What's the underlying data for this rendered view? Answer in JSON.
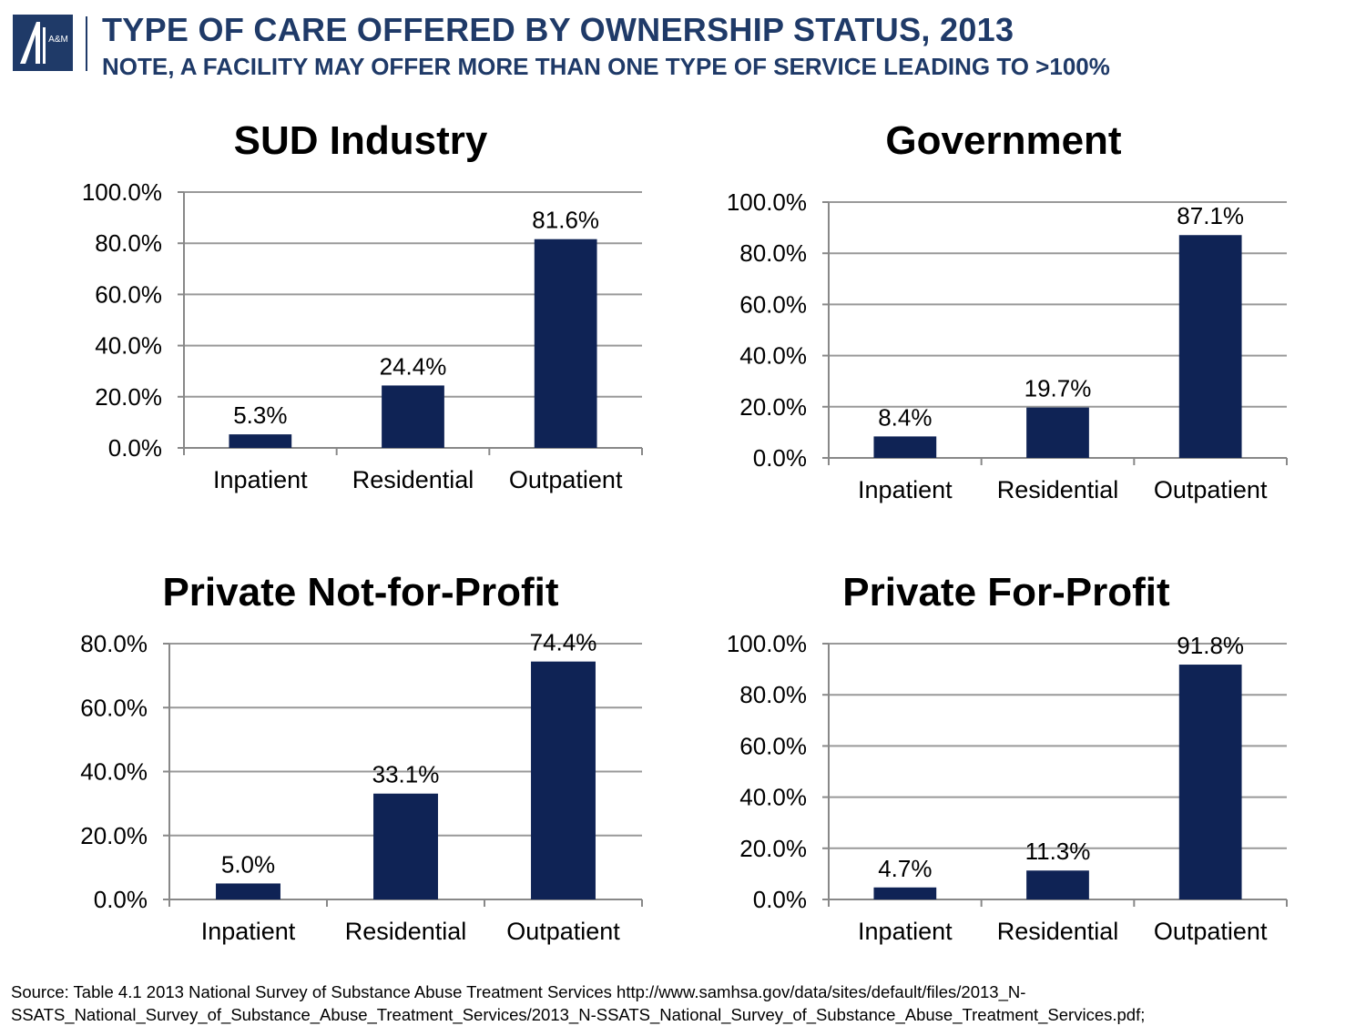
{
  "header": {
    "title": "TYPE OF CARE OFFERED BY OWNERSHIP STATUS, 2013",
    "note": "NOTE, A FACILITY MAY OFFER MORE THAN ONE TYPE OF SERVICE LEADING TO >100%",
    "logo_text": "A&M"
  },
  "colors": {
    "bar": "#0f2355",
    "header": "#1f3a68",
    "grid": "#999999"
  },
  "chart_data": [
    {
      "type": "bar",
      "title": "SUD Industry",
      "categories": [
        "Inpatient",
        "Residential",
        "Outpatient"
      ],
      "values": [
        5.3,
        24.4,
        81.6
      ],
      "data_labels": [
        "5.3%",
        "24.4%",
        "81.6%"
      ],
      "ylim": [
        0,
        100
      ],
      "yticks": [
        0,
        20,
        40,
        60,
        80,
        100
      ],
      "ytick_labels": [
        "0.0%",
        "20.0%",
        "40.0%",
        "60.0%",
        "80.0%",
        "100.0%"
      ],
      "grid": true
    },
    {
      "type": "bar",
      "title": "Government",
      "categories": [
        "Inpatient",
        "Residential",
        "Outpatient"
      ],
      "values": [
        8.4,
        19.7,
        87.1
      ],
      "data_labels": [
        "8.4%",
        "19.7%",
        "87.1%"
      ],
      "ylim": [
        0,
        100
      ],
      "yticks": [
        0,
        20,
        40,
        60,
        80,
        100
      ],
      "ytick_labels": [
        "0.0%",
        "20.0%",
        "40.0%",
        "60.0%",
        "80.0%",
        "100.0%"
      ],
      "grid": true
    },
    {
      "type": "bar",
      "title": "Private Not-for-Profit",
      "categories": [
        "Inpatient",
        "Residential",
        "Outpatient"
      ],
      "values": [
        5.0,
        33.1,
        74.4
      ],
      "data_labels": [
        "5.0%",
        "33.1%",
        "74.4%"
      ],
      "ylim": [
        0,
        80
      ],
      "yticks": [
        0,
        20,
        40,
        60,
        80
      ],
      "ytick_labels": [
        "0.0%",
        "20.0%",
        "40.0%",
        "60.0%",
        "80.0%"
      ],
      "grid": true
    },
    {
      "type": "bar",
      "title": "Private For-Profit",
      "categories": [
        "Inpatient",
        "Residential",
        "Outpatient"
      ],
      "values": [
        4.7,
        11.3,
        91.8
      ],
      "data_labels": [
        "4.7%",
        "11.3%",
        "91.8%"
      ],
      "ylim": [
        0,
        100
      ],
      "yticks": [
        0,
        20,
        40,
        60,
        80,
        100
      ],
      "ytick_labels": [
        "0.0%",
        "20.0%",
        "40.0%",
        "60.0%",
        "80.0%",
        "100.0%"
      ],
      "grid": true
    }
  ],
  "footer": {
    "source_line1": "Source: Table 4.1 2013 National Survey of Substance Abuse Treatment Services http://www.samhsa.gov/data/sites/default/files/2013_N-",
    "source_line2": "SSATS_National_Survey_of_Substance_Abuse_Treatment_Services/2013_N-SSATS_National_Survey_of_Substance_Abuse_Treatment_Services.pdf;"
  }
}
